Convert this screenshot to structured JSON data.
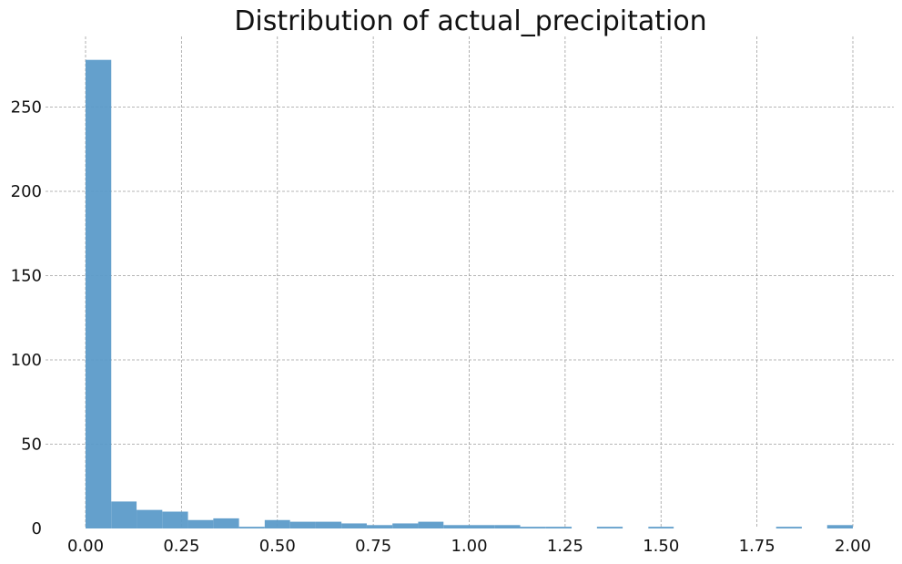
{
  "chart_data": {
    "type": "bar",
    "title": "Distribution of actual_precipitation",
    "xlabel": "",
    "ylabel": "",
    "xlim": [
      0.0,
      2.0
    ],
    "ylim": [
      0,
      280
    ],
    "grid": true,
    "bar_color": "#5c9bc9",
    "x_ticks": [
      {
        "value": 0.0,
        "label": "0.00"
      },
      {
        "value": 0.25,
        "label": "0.25"
      },
      {
        "value": 0.5,
        "label": "0.50"
      },
      {
        "value": 0.75,
        "label": "0.75"
      },
      {
        "value": 1.0,
        "label": "1.00"
      },
      {
        "value": 1.25,
        "label": "1.25"
      },
      {
        "value": 1.5,
        "label": "1.50"
      },
      {
        "value": 1.75,
        "label": "1.75"
      },
      {
        "value": 2.0,
        "label": "2.00"
      }
    ],
    "y_ticks": [
      {
        "value": 0,
        "label": "0"
      },
      {
        "value": 50,
        "label": "50"
      },
      {
        "value": 100,
        "label": "100"
      },
      {
        "value": 150,
        "label": "150"
      },
      {
        "value": 200,
        "label": "200"
      },
      {
        "value": 250,
        "label": "250"
      }
    ],
    "bins": [
      {
        "x0": 0.0,
        "x1": 0.067,
        "count": 278
      },
      {
        "x0": 0.067,
        "x1": 0.133,
        "count": 16
      },
      {
        "x0": 0.133,
        "x1": 0.2,
        "count": 11
      },
      {
        "x0": 0.2,
        "x1": 0.267,
        "count": 10
      },
      {
        "x0": 0.267,
        "x1": 0.333,
        "count": 5
      },
      {
        "x0": 0.333,
        "x1": 0.4,
        "count": 6
      },
      {
        "x0": 0.4,
        "x1": 0.467,
        "count": 1
      },
      {
        "x0": 0.467,
        "x1": 0.533,
        "count": 5
      },
      {
        "x0": 0.533,
        "x1": 0.6,
        "count": 4
      },
      {
        "x0": 0.6,
        "x1": 0.667,
        "count": 4
      },
      {
        "x0": 0.667,
        "x1": 0.733,
        "count": 3
      },
      {
        "x0": 0.733,
        "x1": 0.8,
        "count": 2
      },
      {
        "x0": 0.8,
        "x1": 0.867,
        "count": 3
      },
      {
        "x0": 0.867,
        "x1": 0.933,
        "count": 4
      },
      {
        "x0": 0.933,
        "x1": 1.0,
        "count": 2
      },
      {
        "x0": 1.0,
        "x1": 1.067,
        "count": 2
      },
      {
        "x0": 1.067,
        "x1": 1.133,
        "count": 2
      },
      {
        "x0": 1.133,
        "x1": 1.2,
        "count": 1
      },
      {
        "x0": 1.2,
        "x1": 1.267,
        "count": 1
      },
      {
        "x0": 1.267,
        "x1": 1.333,
        "count": 0
      },
      {
        "x0": 1.333,
        "x1": 1.4,
        "count": 1
      },
      {
        "x0": 1.4,
        "x1": 1.467,
        "count": 0
      },
      {
        "x0": 1.467,
        "x1": 1.533,
        "count": 1
      },
      {
        "x0": 1.533,
        "x1": 1.6,
        "count": 0
      },
      {
        "x0": 1.6,
        "x1": 1.667,
        "count": 0
      },
      {
        "x0": 1.667,
        "x1": 1.733,
        "count": 0
      },
      {
        "x0": 1.733,
        "x1": 1.8,
        "count": 0
      },
      {
        "x0": 1.8,
        "x1": 1.867,
        "count": 1
      },
      {
        "x0": 1.867,
        "x1": 1.933,
        "count": 0
      },
      {
        "x0": 1.933,
        "x1": 2.0,
        "count": 2
      }
    ]
  }
}
